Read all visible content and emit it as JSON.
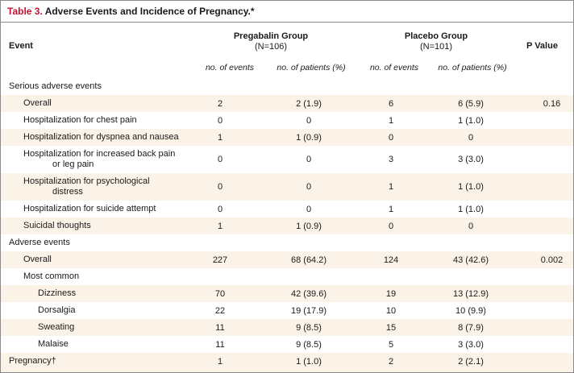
{
  "table": {
    "title_num": "Table 3.",
    "title_text": "Adverse Events and Incidence of Pregnancy.*",
    "headers": {
      "event": "Event",
      "pregabalin": "Pregabalin Group",
      "pregabalin_n": "(N=106)",
      "placebo": "Placebo Group",
      "placebo_n": "(N=101)",
      "pvalue": "P Value",
      "no_events": "no. of events",
      "no_patients": "no. of patients (%)"
    },
    "rows": [
      {
        "event": "Serious adverse events",
        "e1": "",
        "p1": "",
        "e2": "",
        "p2": "",
        "pv": ""
      },
      {
        "event": "Overall",
        "e1": "2",
        "p1": "2 (1.9)",
        "e2": "6",
        "p2": "6 (5.9)",
        "pv": "0.16"
      },
      {
        "event": "Hospitalization for chest pain",
        "e1": "0",
        "p1": "0",
        "e2": "1",
        "p2": "1 (1.0)",
        "pv": ""
      },
      {
        "event": "Hospitalization for dyspnea and nausea",
        "e1": "1",
        "p1": "1 (0.9)",
        "e2": "0",
        "p2": "0",
        "pv": ""
      },
      {
        "event": "Hospitalization for increased back pain",
        "event2": "or leg pain",
        "e1": "0",
        "p1": "0",
        "e2": "3",
        "p2": "3 (3.0)",
        "pv": ""
      },
      {
        "event": "Hospitalization for psychological",
        "event2": "distress",
        "e1": "0",
        "p1": "0",
        "e2": "1",
        "p2": "1 (1.0)",
        "pv": ""
      },
      {
        "event": "Hospitalization for suicide attempt",
        "e1": "0",
        "p1": "0",
        "e2": "1",
        "p2": "1 (1.0)",
        "pv": ""
      },
      {
        "event": "Suicidal thoughts",
        "e1": "1",
        "p1": "1 (0.9)",
        "e2": "0",
        "p2": "0",
        "pv": ""
      },
      {
        "event": "Adverse events",
        "e1": "",
        "p1": "",
        "e2": "",
        "p2": "",
        "pv": ""
      },
      {
        "event": "Overall",
        "e1": "227",
        "p1": "68 (64.2)",
        "e2": "124",
        "p2": "43 (42.6)",
        "pv": "0.002"
      },
      {
        "event": "Most common",
        "e1": "",
        "p1": "",
        "e2": "",
        "p2": "",
        "pv": ""
      },
      {
        "event": "Dizziness",
        "e1": "70",
        "p1": "42 (39.6)",
        "e2": "19",
        "p2": "13 (12.9)",
        "pv": ""
      },
      {
        "event": "Dorsalgia",
        "e1": "22",
        "p1": "19 (17.9)",
        "e2": "10",
        "p2": "10 (9.9)",
        "pv": ""
      },
      {
        "event": "Sweating",
        "e1": "11",
        "p1": "9 (8.5)",
        "e2": "15",
        "p2": "8 (7.9)",
        "pv": ""
      },
      {
        "event": "Malaise",
        "e1": "11",
        "p1": "9 (8.5)",
        "e2": "5",
        "p2": "3 (3.0)",
        "pv": ""
      },
      {
        "event": "Pregnancy†",
        "e1": "1",
        "p1": "1 (1.0)",
        "e2": "2",
        "p2": "2 (2.1)",
        "pv": ""
      }
    ]
  }
}
